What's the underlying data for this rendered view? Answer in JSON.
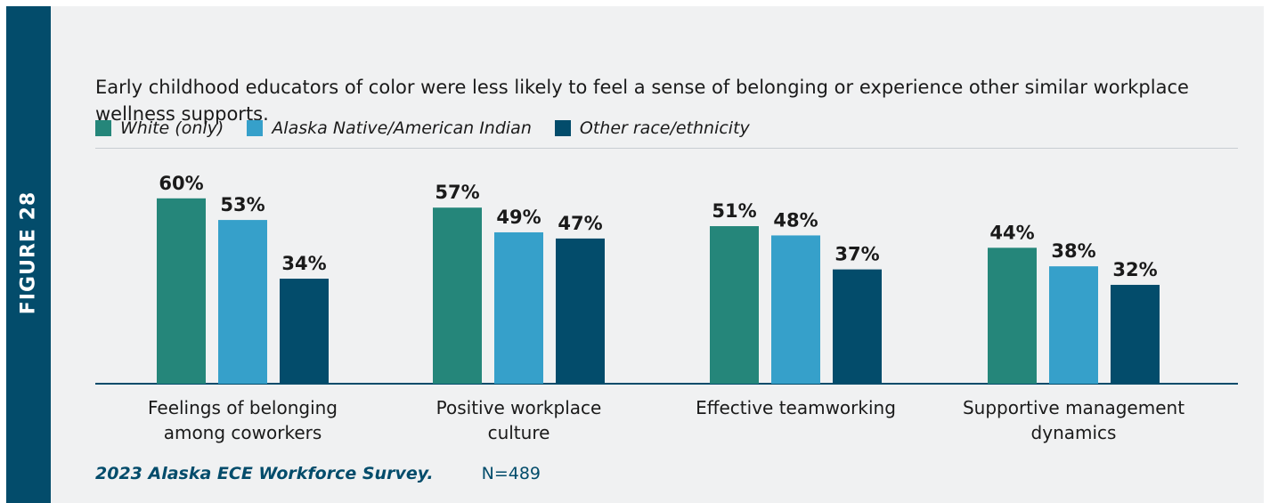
{
  "figure_label": "FIGURE 28",
  "title": "Early childhood educators of color were less likely to feel a sense of belonging or experience other similar workplace wellness supports.",
  "source": {
    "name": "2023 Alaska ECE Workforce Survey.",
    "n": "N=489"
  },
  "chart_data": {
    "type": "bar",
    "categories": [
      "Feelings of belonging among coworkers",
      "Positive workplace culture",
      "Effective teamworking",
      "Supportive management dynamics"
    ],
    "series": [
      {
        "name": "White (only)",
        "color": "#25867a",
        "values": [
          60,
          57,
          51,
          44
        ]
      },
      {
        "name": "Alaska Native/American Indian",
        "color": "#36a0ca",
        "values": [
          53,
          49,
          48,
          38
        ]
      },
      {
        "name": "Other race/ethnicity",
        "color": "#034c6b",
        "values": [
          34,
          47,
          37,
          32
        ]
      }
    ],
    "data_labels": [
      [
        "60%",
        "57%",
        "51%",
        "44%"
      ],
      [
        "53%",
        "49%",
        "48%",
        "38%"
      ],
      [
        "34%",
        "47%",
        "37%",
        "32%"
      ]
    ],
    "ylim": [
      0,
      100
    ],
    "legend_position": "top-left",
    "grid": false
  }
}
